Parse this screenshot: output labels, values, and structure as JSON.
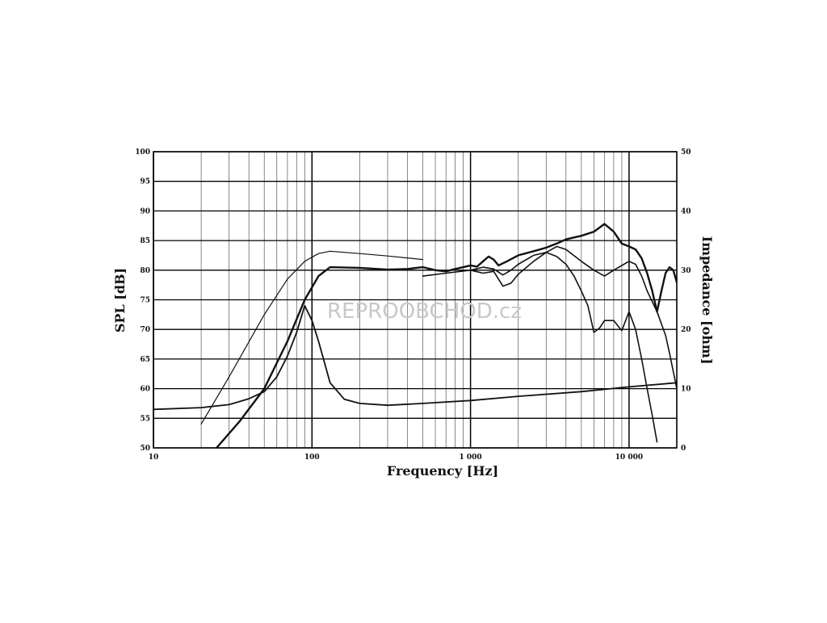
{
  "chart_data": {
    "type": "line",
    "title": "",
    "xlabel": "Frequency [Hz]",
    "ylabel": "SPL [dB]",
    "y2label": "Impedance [ohm]",
    "xscale": "log",
    "xlim": [
      10,
      20000
    ],
    "ylim": [
      50,
      100
    ],
    "y2lim": [
      0,
      50
    ],
    "grid": true,
    "legend": "none",
    "watermark": "REPROOBCHOD.cz",
    "x_tick_labels": [
      {
        "value": 10,
        "label": "10"
      },
      {
        "value": 100,
        "label": "100"
      },
      {
        "value": 1000,
        "label": "1 000"
      },
      {
        "value": 10000,
        "label": "10 000"
      }
    ],
    "y_ticks": [
      50,
      55,
      60,
      65,
      70,
      75,
      80,
      85,
      90,
      95,
      100
    ],
    "y2_ticks": [
      0,
      10,
      20,
      30,
      40,
      50
    ],
    "series": [
      {
        "axis": "left",
        "stroke_width": 1.2,
        "points": [
          [
            20,
            54
          ],
          [
            30,
            62
          ],
          [
            50,
            72.5
          ],
          [
            70,
            78.5
          ],
          [
            90,
            81.5
          ],
          [
            110,
            82.8
          ],
          [
            130,
            83.2
          ],
          [
            200,
            82.8
          ],
          [
            300,
            82.4
          ],
          [
            500,
            81.8
          ]
        ]
      },
      {
        "axis": "left",
        "stroke_width": 2.4,
        "points": [
          [
            25,
            50
          ],
          [
            35,
            54.5
          ],
          [
            50,
            60
          ],
          [
            70,
            68
          ],
          [
            90,
            75
          ],
          [
            110,
            79
          ],
          [
            130,
            80.5
          ],
          [
            200,
            80.4
          ],
          [
            300,
            80.1
          ],
          [
            400,
            80.2
          ],
          [
            500,
            80.5
          ],
          [
            600,
            80
          ],
          [
            700,
            79.8
          ],
          [
            800,
            80.2
          ],
          [
            900,
            80.5
          ],
          [
            1000,
            80.8
          ],
          [
            1100,
            80.6
          ],
          [
            1200,
            81.5
          ],
          [
            1300,
            82.3
          ],
          [
            1400,
            81.8
          ],
          [
            1500,
            80.8
          ],
          [
            1700,
            81.5
          ],
          [
            2000,
            82.5
          ],
          [
            2500,
            83.2
          ],
          [
            3000,
            83.8
          ],
          [
            3500,
            84.5
          ],
          [
            4000,
            85.2
          ],
          [
            5000,
            85.8
          ],
          [
            6000,
            86.5
          ],
          [
            7000,
            87.8
          ],
          [
            8000,
            86.5
          ],
          [
            9000,
            84.5
          ],
          [
            10000,
            84
          ],
          [
            11000,
            83.5
          ],
          [
            12000,
            82
          ],
          [
            13000,
            79.5
          ],
          [
            14000,
            76.5
          ],
          [
            15000,
            73
          ],
          [
            16000,
            76.5
          ],
          [
            17000,
            79.5
          ],
          [
            18000,
            80.5
          ],
          [
            19000,
            80
          ],
          [
            20000,
            78
          ]
        ]
      },
      {
        "axis": "left",
        "stroke_width": 1.6,
        "points": [
          [
            500,
            79
          ],
          [
            700,
            79.5
          ],
          [
            1000,
            80
          ],
          [
            1200,
            80.5
          ],
          [
            1400,
            80.2
          ],
          [
            1600,
            79.2
          ],
          [
            1800,
            80
          ],
          [
            2000,
            81
          ],
          [
            2500,
            82.5
          ],
          [
            3000,
            83
          ],
          [
            3500,
            84
          ],
          [
            4000,
            83.5
          ],
          [
            5000,
            81.5
          ],
          [
            6000,
            80
          ],
          [
            7000,
            79
          ],
          [
            8000,
            80
          ],
          [
            10000,
            81.5
          ],
          [
            11000,
            81
          ],
          [
            12000,
            79
          ],
          [
            13000,
            76.5
          ],
          [
            15000,
            73
          ],
          [
            17000,
            69
          ],
          [
            18000,
            66
          ],
          [
            20000,
            60
          ]
        ]
      },
      {
        "axis": "left",
        "stroke_width": 1.6,
        "points": [
          [
            1000,
            80
          ],
          [
            1200,
            79.5
          ],
          [
            1400,
            79.8
          ],
          [
            1600,
            77.3
          ],
          [
            1800,
            77.8
          ],
          [
            2000,
            79.3
          ],
          [
            2500,
            81.5
          ],
          [
            3000,
            83
          ],
          [
            3500,
            82.3
          ],
          [
            4000,
            81
          ],
          [
            4500,
            79
          ],
          [
            5000,
            76.5
          ],
          [
            5500,
            74
          ],
          [
            6000,
            69.5
          ],
          [
            6500,
            70.2
          ],
          [
            7000,
            71.5
          ],
          [
            8000,
            71.5
          ],
          [
            9000,
            69.8
          ],
          [
            10000,
            73
          ],
          [
            11000,
            70
          ],
          [
            12000,
            65
          ],
          [
            13000,
            60
          ],
          [
            14000,
            55.5
          ],
          [
            15000,
            51
          ]
        ]
      },
      {
        "axis": "right",
        "stroke_width": 1.8,
        "points": [
          [
            10,
            6.5
          ],
          [
            20,
            6.8
          ],
          [
            30,
            7.3
          ],
          [
            40,
            8.3
          ],
          [
            50,
            9.5
          ],
          [
            60,
            12
          ],
          [
            70,
            15.5
          ],
          [
            80,
            19.5
          ],
          [
            90,
            24
          ],
          [
            100,
            21.5
          ],
          [
            110,
            18
          ],
          [
            130,
            11
          ],
          [
            160,
            8.2
          ],
          [
            200,
            7.5
          ],
          [
            300,
            7.2
          ],
          [
            500,
            7.5
          ],
          [
            1000,
            8
          ],
          [
            2000,
            8.7
          ],
          [
            5000,
            9.5
          ],
          [
            10000,
            10.3
          ],
          [
            20000,
            11
          ]
        ]
      }
    ]
  }
}
